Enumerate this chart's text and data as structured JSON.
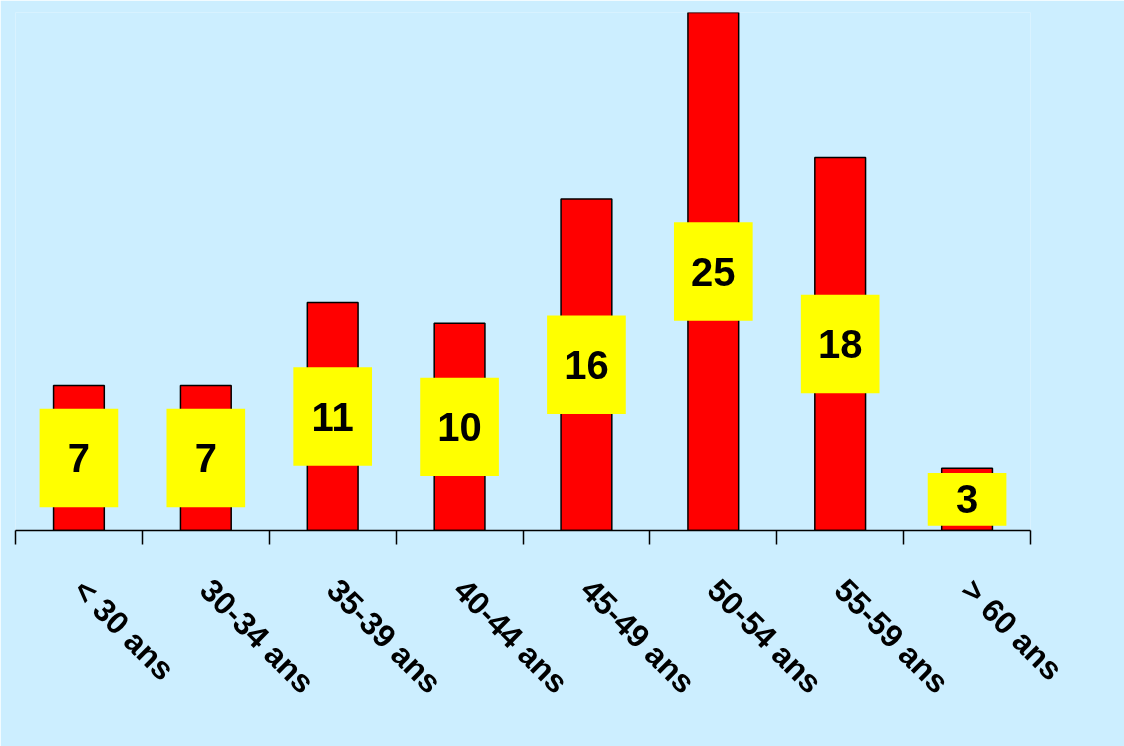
{
  "chart_data": {
    "type": "bar",
    "categories": [
      "< 30 ans",
      "30-34 ans",
      "35-39 ans",
      "40-44 ans",
      "45-49 ans",
      "50-54 ans",
      "55-59 ans",
      "> 60 ans"
    ],
    "values": [
      7,
      7,
      11,
      10,
      16,
      25,
      18,
      3
    ],
    "color": "#ff0000",
    "data_labels": true,
    "grid": false
  }
}
